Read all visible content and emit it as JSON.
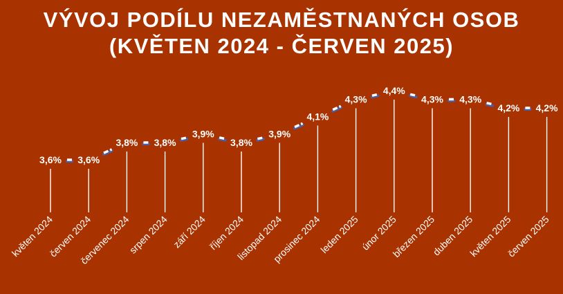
{
  "chart_data": {
    "type": "line",
    "title": [
      "VÝVOJ PODÍLU NEZAMĚSTNANÝCH OSOB",
      "(KVĚTEN 2024 - ČERVEN 2025)"
    ],
    "xlabel": "",
    "ylabel": "",
    "categories": [
      "květen 2024",
      "červen 2024",
      "červenec 2024",
      "srpen 2024",
      "září 2024",
      "říjen 2024",
      "listopad 2024",
      "prosinec 2024",
      "leden 2025",
      "únor 2025",
      "březen 2025",
      "duben 2025",
      "květen 2025",
      "červen 2025"
    ],
    "values": [
      3.6,
      3.6,
      3.8,
      3.8,
      3.9,
      3.8,
      3.9,
      4.1,
      4.3,
      4.4,
      4.3,
      4.3,
      4.2,
      4.2
    ],
    "data_labels": [
      "3,6%",
      "3,6%",
      "3,8%",
      "3,8%",
      "3,9%",
      "3,8%",
      "3,9%",
      "4,1%",
      "4,3%",
      "4,4%",
      "4,3%",
      "4,3%",
      "4,2%",
      "4,2%"
    ],
    "grid": false,
    "legend": "none",
    "colors": {
      "background": "#a83200",
      "text": "#ffffff",
      "line": "#ffffff",
      "line_shadow": "#4a5fa8",
      "drop_lines": "#ffffff"
    }
  }
}
